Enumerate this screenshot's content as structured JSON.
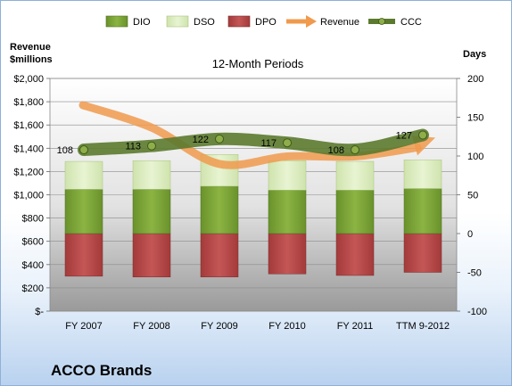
{
  "chart_data": {
    "type": "bar",
    "company": "ACCO Brands",
    "subtitle": "12-Month Periods",
    "left_axis_title": [
      "Revenue",
      "$millions"
    ],
    "right_axis_title": "Days",
    "categories": [
      "FY 2007",
      "FY 2008",
      "FY 2009",
      "FY 2010",
      "FY 2011",
      "TTM 9-2012"
    ],
    "left_ticks": [
      "$2,000",
      "$1,800",
      "$1,600",
      "$1,400",
      "$1,200",
      "$1,000",
      "$800",
      "$600",
      "$400",
      "$200",
      "$-"
    ],
    "right_ticks": [
      "200",
      "150",
      "100",
      "50",
      "0",
      "-50",
      "-100"
    ],
    "left_range": [
      0,
      2000
    ],
    "right_range": [
      -100,
      200
    ],
    "series": [
      {
        "name": "DIO",
        "values": [
          57,
          57,
          61,
          56,
          56,
          58
        ],
        "color": "#7ea63a"
      },
      {
        "name": "DSO",
        "values": [
          36,
          37,
          41,
          38,
          37,
          37
        ],
        "color": "#dbeebf"
      },
      {
        "name": "DPO",
        "values": [
          -55,
          -56,
          -56,
          -52,
          -54,
          -50
        ],
        "color": "#b94a4a"
      },
      {
        "name": "Revenue",
        "values": [
          1770,
          1578,
          1265,
          1330,
          1330,
          1430
        ],
        "color": "#f09a4d"
      },
      {
        "name": "CCC",
        "values": [
          108,
          113,
          122,
          117,
          108,
          127
        ],
        "color": "#5b7a2d"
      }
    ],
    "ccc_labels": [
      "108",
      "113",
      "122",
      "117",
      "108",
      "127"
    ],
    "grid": true,
    "legend": "top"
  }
}
